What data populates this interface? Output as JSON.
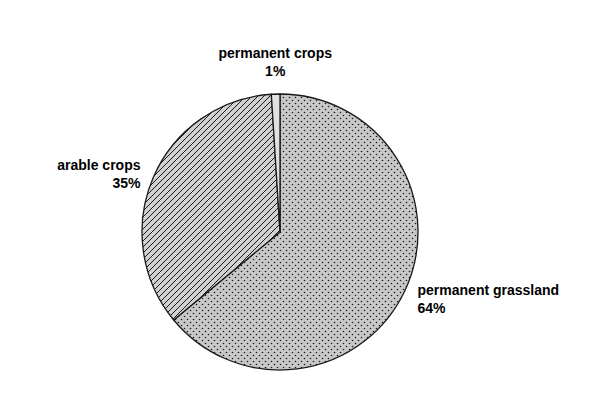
{
  "chart_data": {
    "type": "pie",
    "categories": [
      "permanent grassland",
      "arable crops",
      "permanent crops"
    ],
    "values": [
      64,
      35,
      1
    ],
    "value_labels": [
      "64%",
      "35%",
      "1%"
    ],
    "colors": [
      "#c8c8c8",
      "#d0d0d0",
      "#e0e0e0"
    ],
    "data_labels": true
  }
}
